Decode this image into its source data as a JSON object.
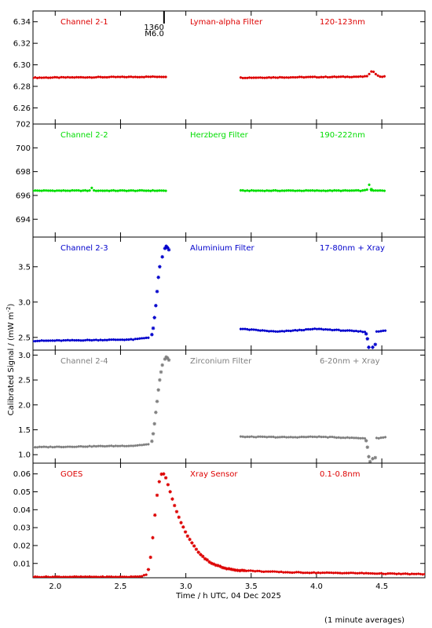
{
  "chart_data": {
    "type": "scatter",
    "xlabel": "Time / h UTC, 04 Dec 2025",
    "ylabel": "Calibrated Signal / (mW m",
    "ylabel_sup": "-2",
    "ylabel_end": ")",
    "footnote": "(1 minute averages)",
    "xlim": [
      1.83,
      4.83
    ],
    "xticks": [
      "2.0",
      "2.5",
      "3.0",
      "3.5",
      "4.0",
      "4.5"
    ],
    "flare_marker": {
      "x": 2.833,
      "label_top": "1360",
      "label_bottom": "M6.0"
    },
    "panels": [
      {
        "channel": "Channel 2-1",
        "filter": "Lyman-alpha Filter",
        "band": "120-123nm",
        "color": "#dd0000",
        "ylim": [
          6.245,
          6.35
        ],
        "yticks": [
          "6.26",
          "6.28",
          "6.30",
          "6.32",
          "6.34"
        ],
        "segments": [
          [
            1.83,
            2.85
          ],
          [
            3.42,
            4.53
          ]
        ],
        "baseline": [
          [
            1.83,
            6.288
          ],
          [
            2.85,
            6.289
          ],
          [
            3.42,
            6.288
          ],
          [
            4.36,
            6.289
          ],
          [
            4.53,
            6.289
          ]
        ],
        "features": [
          {
            "x": 4.43,
            "dy": 0.005,
            "w": 0.03
          }
        ]
      },
      {
        "channel": "Channel 2-2",
        "filter": "Herzberg Filter",
        "band": "190-222nm",
        "color": "#00dd00",
        "ylim": [
          692.5,
          702.0
        ],
        "yticks": [
          "694",
          "696",
          "698",
          "700",
          "702"
        ],
        "segments": [
          [
            1.83,
            2.85
          ],
          [
            3.42,
            4.53
          ]
        ],
        "baseline": [
          [
            1.83,
            696.4
          ],
          [
            2.85,
            696.4
          ],
          [
            3.42,
            696.4
          ],
          [
            4.53,
            696.4
          ]
        ],
        "features": [
          {
            "x": 2.28,
            "dy": 0.25,
            "w": 0.005
          },
          {
            "x": 4.38,
            "dy": 0.3,
            "w": 0.006
          },
          {
            "x": 4.4,
            "dy": 0.7,
            "w": 0.006
          }
        ],
        "extras": [
          [
            4.42,
            696.5
          ]
        ]
      },
      {
        "channel": "Channel 2-3",
        "filter": "Aluminium Filter",
        "band": "17-80nm + Xray",
        "color": "#0000cc",
        "ylim": [
          2.32,
          3.92
        ],
        "yticks": [
          "2.5",
          "3.0",
          "3.5"
        ],
        "segments": [
          [
            1.83,
            2.72
          ],
          [
            3.42,
            4.37
          ],
          [
            4.46,
            4.53
          ]
        ],
        "baseline": [
          [
            1.83,
            2.45
          ],
          [
            2.6,
            2.47
          ],
          [
            2.72,
            2.5
          ],
          [
            3.42,
            2.62
          ],
          [
            3.7,
            2.58
          ],
          [
            4.0,
            2.62
          ],
          [
            4.37,
            2.58
          ],
          [
            4.46,
            2.58
          ],
          [
            4.53,
            2.6
          ]
        ],
        "extras": [
          [
            2.74,
            2.54
          ],
          [
            2.75,
            2.63
          ],
          [
            2.76,
            2.78
          ],
          [
            2.77,
            2.95
          ],
          [
            2.78,
            3.15
          ],
          [
            2.79,
            3.35
          ],
          [
            2.8,
            3.5
          ],
          [
            2.82,
            3.64
          ],
          [
            2.84,
            3.76
          ],
          [
            2.85,
            3.79
          ],
          [
            2.86,
            3.77
          ],
          [
            2.87,
            3.74
          ],
          [
            4.38,
            2.55
          ],
          [
            4.39,
            2.48
          ],
          [
            4.4,
            2.36
          ],
          [
            4.41,
            2.28
          ],
          [
            4.43,
            2.36
          ],
          [
            4.45,
            2.4
          ]
        ]
      },
      {
        "channel": "Channel 2-4",
        "filter": "Zirconium Filter",
        "band": "6-20nm + Xray",
        "color": "#808080",
        "ylim": [
          0.83,
          3.1
        ],
        "yticks": [
          "1.0",
          "1.5",
          "2.0",
          "2.5",
          "3.0"
        ],
        "segments": [
          [
            1.83,
            2.72
          ],
          [
            3.42,
            4.37
          ],
          [
            4.46,
            4.53
          ]
        ],
        "baseline": [
          [
            1.83,
            1.15
          ],
          [
            2.6,
            1.18
          ],
          [
            2.72,
            1.21
          ],
          [
            3.42,
            1.36
          ],
          [
            3.8,
            1.35
          ],
          [
            4.0,
            1.36
          ],
          [
            4.37,
            1.33
          ],
          [
            4.46,
            1.33
          ],
          [
            4.53,
            1.35
          ]
        ],
        "extras": [
          [
            2.74,
            1.27
          ],
          [
            2.75,
            1.42
          ],
          [
            2.76,
            1.62
          ],
          [
            2.77,
            1.85
          ],
          [
            2.78,
            2.07
          ],
          [
            2.79,
            2.3
          ],
          [
            2.8,
            2.5
          ],
          [
            2.81,
            2.66
          ],
          [
            2.82,
            2.8
          ],
          [
            2.84,
            2.92
          ],
          [
            2.85,
            2.96
          ],
          [
            2.86,
            2.94
          ],
          [
            2.87,
            2.9
          ],
          [
            4.38,
            1.28
          ],
          [
            4.39,
            1.15
          ],
          [
            4.4,
            0.96
          ],
          [
            4.41,
            0.86
          ],
          [
            4.43,
            0.92
          ],
          [
            4.45,
            0.94
          ]
        ]
      },
      {
        "channel": "GOES",
        "filter": "Xray Sensor",
        "band": "0.1-0.8nm",
        "color": "#dd0000",
        "ylim": [
          0.002,
          0.066
        ],
        "yticks": [
          "0.01",
          "0.02",
          "0.03",
          "0.04",
          "0.05",
          "0.06"
        ],
        "segments": [
          [
            1.83,
            4.83
          ]
        ],
        "baseline": [
          [
            1.83,
            0.0025
          ],
          [
            2.6,
            0.0025
          ],
          [
            2.67,
            0.003
          ],
          [
            2.7,
            0.004
          ],
          [
            2.72,
            0.008
          ],
          [
            2.74,
            0.019
          ],
          [
            2.76,
            0.035
          ],
          [
            2.78,
            0.048
          ],
          [
            2.8,
            0.057
          ],
          [
            2.82,
            0.061
          ],
          [
            2.84,
            0.059
          ],
          [
            2.86,
            0.055
          ],
          [
            2.9,
            0.045
          ],
          [
            2.95,
            0.035
          ],
          [
            3.0,
            0.027
          ],
          [
            3.05,
            0.021
          ],
          [
            3.1,
            0.016
          ],
          [
            3.15,
            0.0125
          ],
          [
            3.2,
            0.01
          ],
          [
            3.3,
            0.0072
          ],
          [
            3.4,
            0.0062
          ],
          [
            3.6,
            0.0055
          ],
          [
            3.8,
            0.005
          ],
          [
            4.0,
            0.0048
          ],
          [
            4.3,
            0.0046
          ],
          [
            4.6,
            0.0042
          ],
          [
            4.83,
            0.004
          ]
        ]
      }
    ]
  }
}
